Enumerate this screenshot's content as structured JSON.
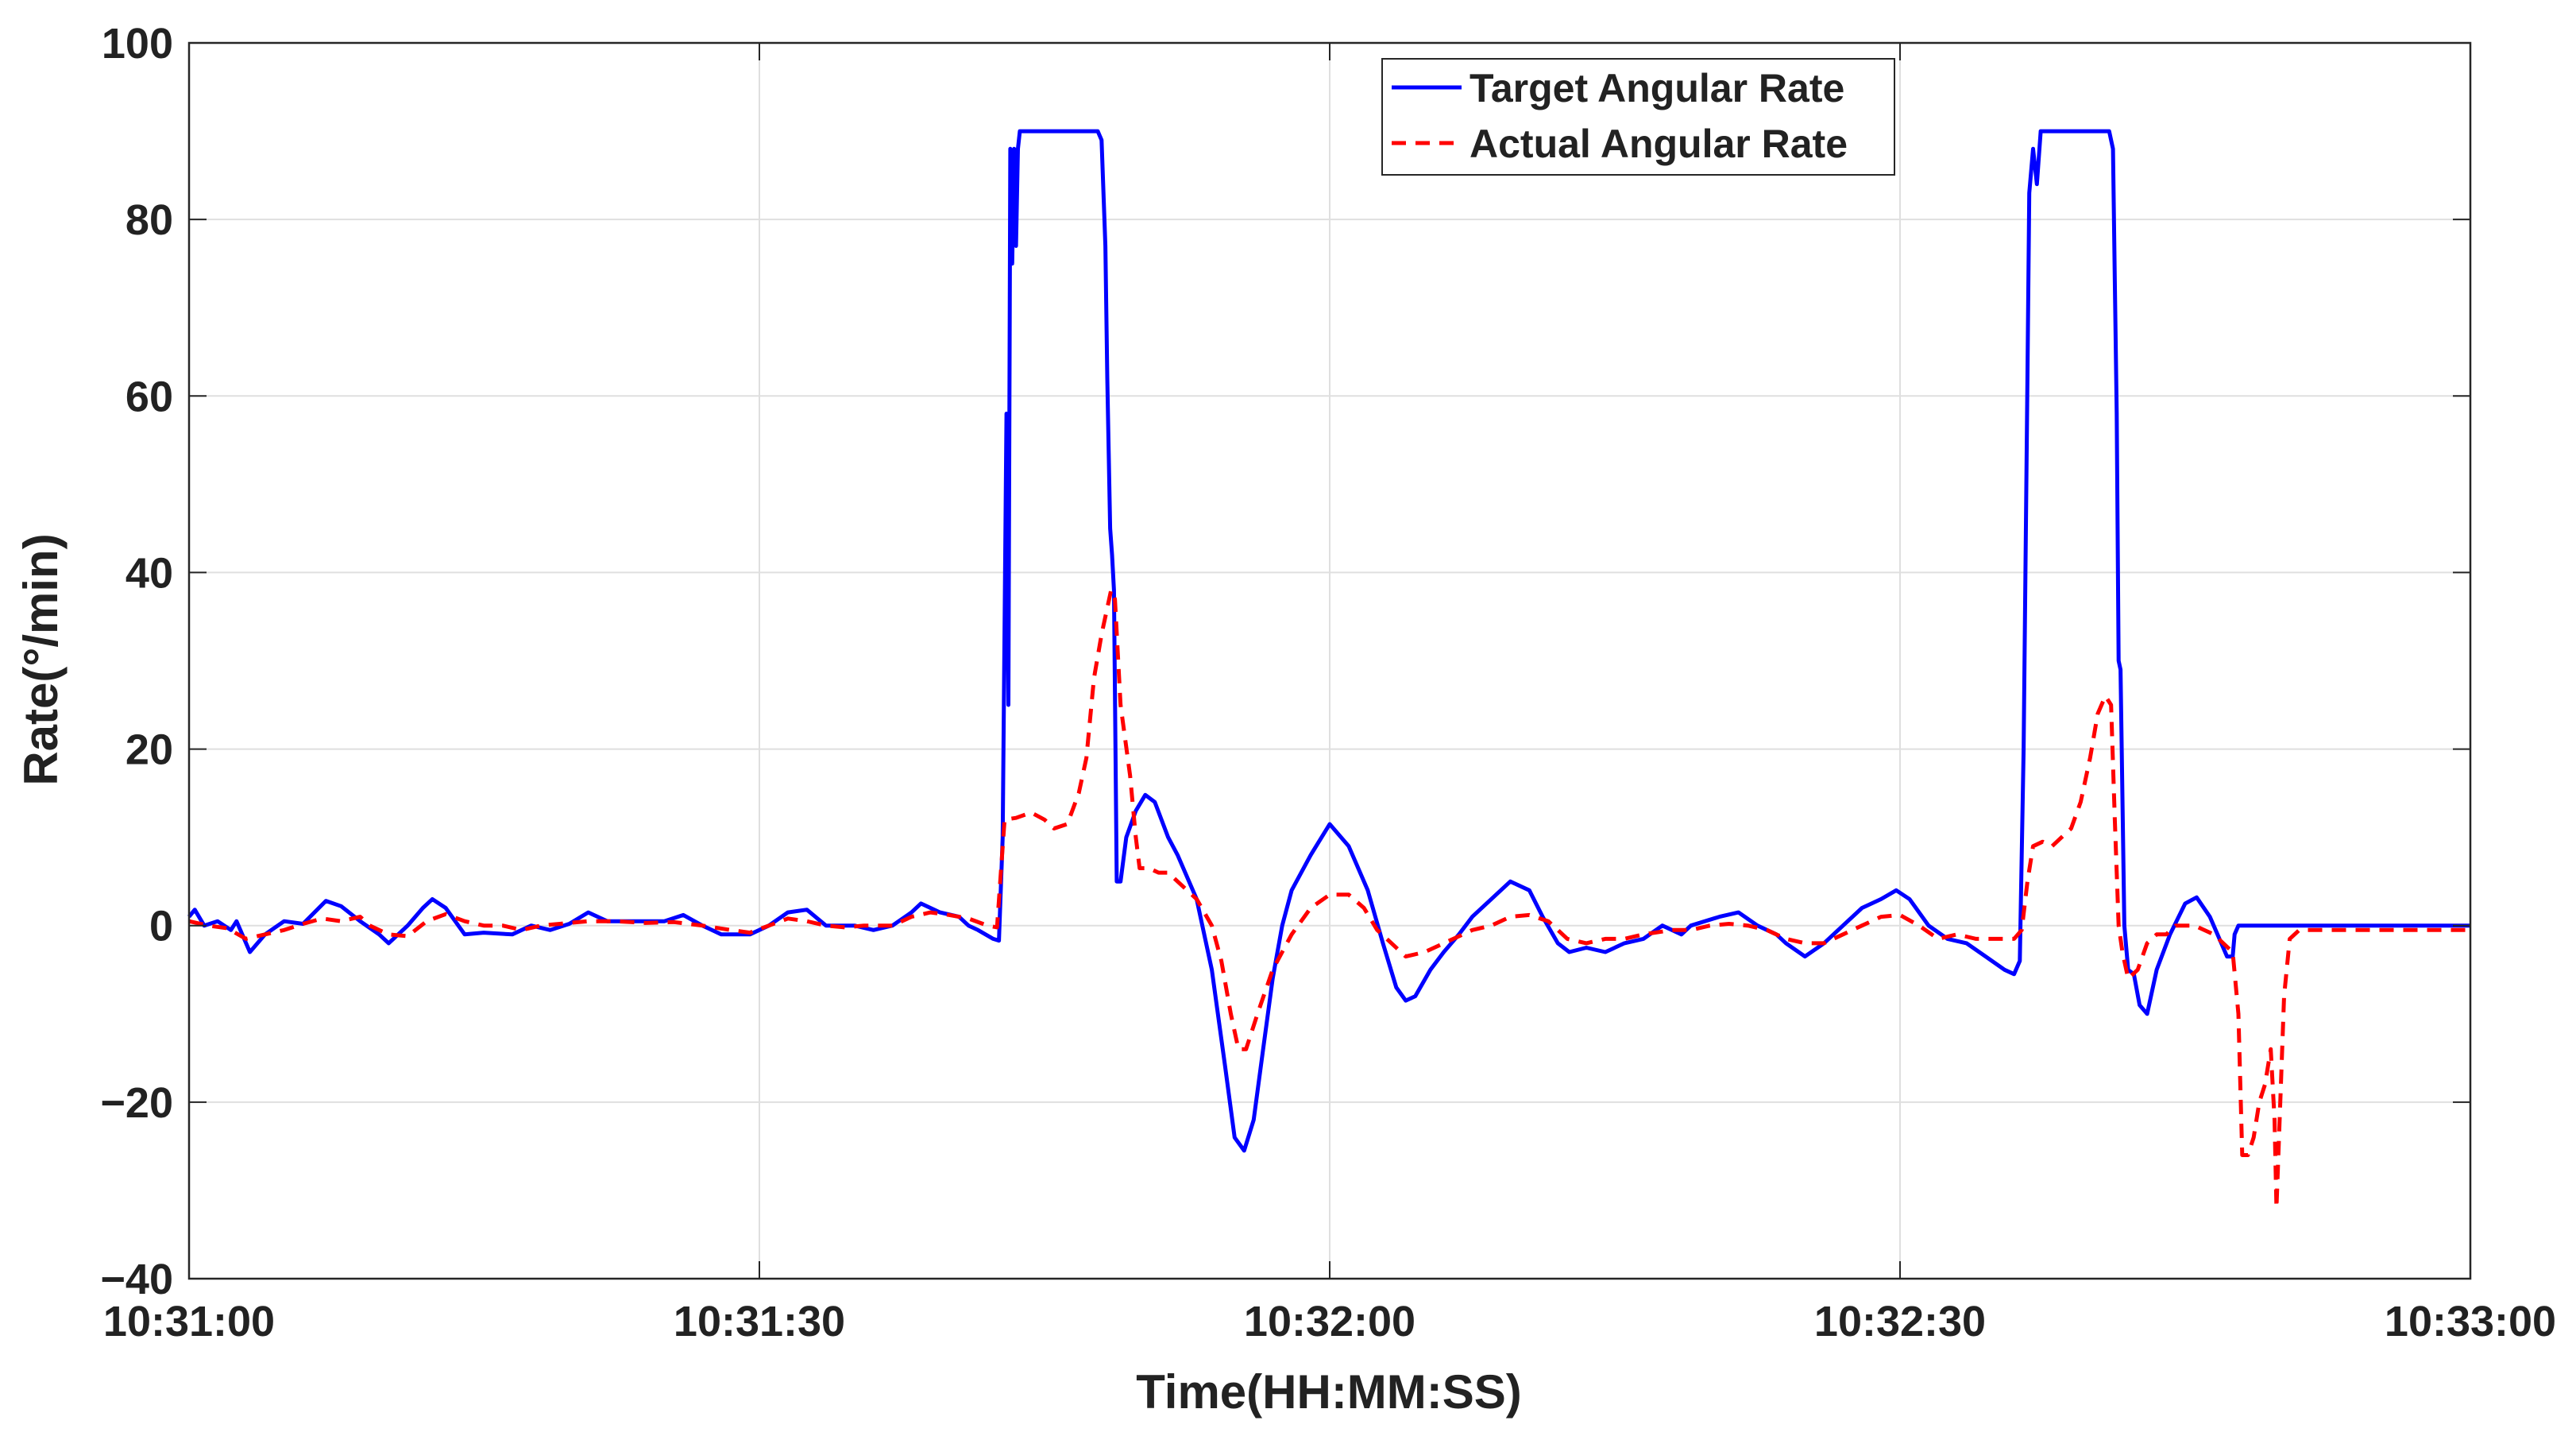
{
  "chart_data": {
    "type": "line",
    "xlabel": "Time(HH:MM:SS)",
    "ylabel": "Rate(°/min)",
    "xlim": [
      0,
      120
    ],
    "ylim": [
      -40,
      100
    ],
    "grid": true,
    "legend_placement": "top-center",
    "x_ticks": [
      {
        "value": 0,
        "label": "10:31:00"
      },
      {
        "value": 30,
        "label": "10:31:30"
      },
      {
        "value": 60,
        "label": "10:32:00"
      },
      {
        "value": 90,
        "label": "10:32:30"
      },
      {
        "value": 120,
        "label": "10:33:00"
      }
    ],
    "y_ticks": [
      {
        "value": 100,
        "label": "100"
      },
      {
        "value": 80,
        "label": "80"
      },
      {
        "value": 60,
        "label": "60"
      },
      {
        "value": 40,
        "label": "40"
      },
      {
        "value": 20,
        "label": "20"
      },
      {
        "value": 0,
        "label": "0"
      },
      {
        "value": -20,
        "label": "−20"
      },
      {
        "value": -40,
        "label": "−40"
      }
    ],
    "series": [
      {
        "name": "Target Angular Rate",
        "color": "#0000ff",
        "style": "solid",
        "points": [
          [
            0,
            1
          ],
          [
            0.3,
            1.8
          ],
          [
            0.8,
            0
          ],
          [
            1.5,
            0.5
          ],
          [
            2.2,
            -0.5
          ],
          [
            2.5,
            0.5
          ],
          [
            3.2,
            -3
          ],
          [
            4,
            -1
          ],
          [
            5,
            0.5
          ],
          [
            6,
            0.2
          ],
          [
            7.2,
            2.8
          ],
          [
            8,
            2.2
          ],
          [
            9,
            0.5
          ],
          [
            10,
            -1
          ],
          [
            10.5,
            -2
          ],
          [
            11.5,
            0
          ],
          [
            12.3,
            2
          ],
          [
            12.8,
            3
          ],
          [
            13.5,
            2
          ],
          [
            14.5,
            -1
          ],
          [
            15.5,
            -0.8
          ],
          [
            17,
            -1
          ],
          [
            18,
            0
          ],
          [
            19,
            -0.5
          ],
          [
            20,
            0.2
          ],
          [
            21,
            1.5
          ],
          [
            22,
            0.5
          ],
          [
            23.5,
            0.5
          ],
          [
            25,
            0.5
          ],
          [
            26,
            1.2
          ],
          [
            27,
            0
          ],
          [
            28,
            -1
          ],
          [
            29.5,
            -1
          ],
          [
            30.5,
            0
          ],
          [
            31.5,
            1.5
          ],
          [
            32.5,
            1.8
          ],
          [
            33.5,
            0
          ],
          [
            35,
            0
          ],
          [
            36,
            -0.5
          ],
          [
            37,
            0
          ],
          [
            38,
            1.5
          ],
          [
            38.5,
            2.5
          ],
          [
            39.5,
            1.5
          ],
          [
            40.5,
            1
          ],
          [
            41,
            0
          ],
          [
            41.5,
            -0.5
          ],
          [
            42.3,
            -1.5
          ],
          [
            42.6,
            -1.7
          ],
          [
            42.8,
            10
          ],
          [
            43,
            58
          ],
          [
            43.1,
            25
          ],
          [
            43.2,
            88
          ],
          [
            43.3,
            75
          ],
          [
            43.4,
            88
          ],
          [
            43.5,
            77
          ],
          [
            43.6,
            88
          ],
          [
            43.7,
            90
          ],
          [
            44,
            90
          ],
          [
            47,
            90
          ],
          [
            47.8,
            90
          ],
          [
            48,
            89
          ],
          [
            48.2,
            77
          ],
          [
            48.3,
            62
          ],
          [
            48.45,
            45
          ],
          [
            48.55,
            42
          ],
          [
            48.65,
            38
          ],
          [
            48.8,
            5
          ],
          [
            49.0,
            5
          ],
          [
            49.3,
            10
          ],
          [
            49.8,
            13
          ],
          [
            50.3,
            14.8
          ],
          [
            50.8,
            14
          ],
          [
            51.5,
            10
          ],
          [
            52,
            8
          ],
          [
            53,
            3
          ],
          [
            53.8,
            -5
          ],
          [
            54.5,
            -16
          ],
          [
            55,
            -24
          ],
          [
            55.5,
            -25.5
          ],
          [
            56,
            -22
          ],
          [
            56.5,
            -14
          ],
          [
            57,
            -6
          ],
          [
            57.5,
            0
          ],
          [
            58,
            4
          ],
          [
            59,
            8
          ],
          [
            60,
            11.5
          ],
          [
            61,
            9
          ],
          [
            62,
            4
          ],
          [
            62.8,
            -2
          ],
          [
            63.5,
            -7
          ],
          [
            64,
            -8.5
          ],
          [
            64.5,
            -8
          ],
          [
            65.3,
            -5
          ],
          [
            66,
            -3
          ],
          [
            66.8,
            -1
          ],
          [
            67.5,
            1
          ],
          [
            68.5,
            3
          ],
          [
            69.5,
            5
          ],
          [
            70.5,
            4
          ],
          [
            71.2,
            1
          ],
          [
            72,
            -2
          ],
          [
            72.6,
            -3
          ],
          [
            73.5,
            -2.5
          ],
          [
            74.5,
            -3
          ],
          [
            75.5,
            -2
          ],
          [
            76.5,
            -1.5
          ],
          [
            77.5,
            0
          ],
          [
            78.5,
            -1
          ],
          [
            79,
            0
          ],
          [
            80.5,
            1
          ],
          [
            81.5,
            1.5
          ],
          [
            82.5,
            0
          ],
          [
            83.5,
            -1
          ],
          [
            84,
            -2
          ],
          [
            85,
            -3.5
          ],
          [
            86,
            -2
          ],
          [
            87,
            0
          ],
          [
            88,
            2
          ],
          [
            89,
            3
          ],
          [
            89.8,
            4
          ],
          [
            90.5,
            3
          ],
          [
            91.5,
            0
          ],
          [
            92.5,
            -1.5
          ],
          [
            93.5,
            -2
          ],
          [
            94.5,
            -3.5
          ],
          [
            95.5,
            -5
          ],
          [
            96,
            -5.5
          ],
          [
            96.3,
            -4
          ],
          [
            96.5,
            20
          ],
          [
            96.7,
            62
          ],
          [
            96.8,
            83
          ],
          [
            97,
            88
          ],
          [
            97.2,
            84
          ],
          [
            97.4,
            90
          ],
          [
            97.6,
            90
          ],
          [
            100,
            90
          ],
          [
            101,
            90
          ],
          [
            101.2,
            88
          ],
          [
            101.3,
            73
          ],
          [
            101.4,
            58
          ],
          [
            101.5,
            30
          ],
          [
            101.6,
            29
          ],
          [
            101.8,
            0
          ],
          [
            102,
            -5
          ],
          [
            102.3,
            -5.5
          ],
          [
            102.6,
            -9
          ],
          [
            103,
            -10
          ],
          [
            103.5,
            -5
          ],
          [
            104.2,
            -1
          ],
          [
            105,
            2.5
          ],
          [
            105.6,
            3.2
          ],
          [
            106.3,
            1
          ],
          [
            106.8,
            -1.5
          ],
          [
            107.2,
            -3.5
          ],
          [
            107.5,
            -3.5
          ],
          [
            107.6,
            -1
          ],
          [
            107.8,
            0
          ],
          [
            110,
            0
          ],
          [
            115,
            0
          ],
          [
            120,
            0
          ]
        ]
      },
      {
        "name": "Actual Angular Rate",
        "color": "#ff0000",
        "style": "dashed",
        "points": [
          [
            0,
            0.5
          ],
          [
            1,
            0
          ],
          [
            2,
            -0.3
          ],
          [
            3,
            -1.5
          ],
          [
            4,
            -1
          ],
          [
            5,
            -0.5
          ],
          [
            6,
            0.2
          ],
          [
            7,
            0.8
          ],
          [
            8,
            0.5
          ],
          [
            9,
            1
          ],
          [
            9.5,
            0
          ],
          [
            10.5,
            -1
          ],
          [
            11.5,
            -1.2
          ],
          [
            12.5,
            0.5
          ],
          [
            13.5,
            1.3
          ],
          [
            14.5,
            0.5
          ],
          [
            15.5,
            0
          ],
          [
            16.5,
            0
          ],
          [
            17.5,
            -0.5
          ],
          [
            18.5,
            0
          ],
          [
            19.5,
            0.2
          ],
          [
            21,
            0.5
          ],
          [
            22.5,
            0.5
          ],
          [
            24,
            0.3
          ],
          [
            25.5,
            0.4
          ],
          [
            27,
            0
          ],
          [
            28.5,
            -0.5
          ],
          [
            29.5,
            -0.8
          ],
          [
            30.5,
            0
          ],
          [
            31.5,
            0.8
          ],
          [
            32.5,
            0.5
          ],
          [
            33.5,
            0
          ],
          [
            34.5,
            -0.2
          ],
          [
            35.5,
            0
          ],
          [
            37,
            0
          ],
          [
            38,
            1
          ],
          [
            39,
            1.5
          ],
          [
            40,
            1.2
          ],
          [
            41,
            0.8
          ],
          [
            42,
            0
          ],
          [
            42.5,
            -0.2
          ],
          [
            42.7,
            6
          ],
          [
            42.9,
            12
          ],
          [
            43.5,
            12.2
          ],
          [
            44.3,
            12.8
          ],
          [
            45,
            12
          ],
          [
            45.5,
            11
          ],
          [
            46.2,
            11.5
          ],
          [
            46.8,
            15
          ],
          [
            47.2,
            19
          ],
          [
            47.6,
            28
          ],
          [
            48.0,
            33
          ],
          [
            48.5,
            38
          ],
          [
            48.7,
            37
          ],
          [
            49,
            25
          ],
          [
            49.5,
            17
          ],
          [
            49.8,
            10
          ],
          [
            50,
            6.5
          ],
          [
            50.5,
            6.5
          ],
          [
            51,
            6
          ],
          [
            51.5,
            6
          ],
          [
            52,
            5
          ],
          [
            53,
            3
          ],
          [
            53.8,
            0
          ],
          [
            54.3,
            -4
          ],
          [
            54.8,
            -10
          ],
          [
            55.2,
            -14
          ],
          [
            55.6,
            -14
          ],
          [
            56.2,
            -10
          ],
          [
            57,
            -5
          ],
          [
            58,
            -1
          ],
          [
            59,
            2
          ],
          [
            60,
            3.5
          ],
          [
            61,
            3.5
          ],
          [
            61.8,
            2
          ],
          [
            62.5,
            -0.5
          ],
          [
            63,
            -1.5
          ],
          [
            64,
            -3.5
          ],
          [
            65,
            -3
          ],
          [
            66.5,
            -1.5
          ],
          [
            67.5,
            -0.5
          ],
          [
            68.5,
            0
          ],
          [
            69.5,
            1
          ],
          [
            70.5,
            1.2
          ],
          [
            71.5,
            0.5
          ],
          [
            72.5,
            -1.5
          ],
          [
            73.5,
            -2
          ],
          [
            74.5,
            -1.5
          ],
          [
            75.5,
            -1.5
          ],
          [
            76.5,
            -1
          ],
          [
            78,
            -0.5
          ],
          [
            79,
            -0.5
          ],
          [
            80,
            0
          ],
          [
            81,
            0.2
          ],
          [
            82,
            0
          ],
          [
            83,
            -0.5
          ],
          [
            84,
            -1.5
          ],
          [
            85,
            -2
          ],
          [
            86,
            -2
          ],
          [
            87,
            -1
          ],
          [
            88,
            0
          ],
          [
            89,
            1
          ],
          [
            90,
            1.2
          ],
          [
            91,
            0
          ],
          [
            92,
            -1.5
          ],
          [
            93,
            -1
          ],
          [
            94,
            -1.5
          ],
          [
            95,
            -1.5
          ],
          [
            96,
            -1.5
          ],
          [
            96.4,
            -0.5
          ],
          [
            96.7,
            5
          ],
          [
            97,
            9
          ],
          [
            97.5,
            9.5
          ],
          [
            98,
            9
          ],
          [
            98.5,
            10
          ],
          [
            99,
            11
          ],
          [
            99.5,
            14
          ],
          [
            100,
            19
          ],
          [
            100.4,
            24
          ],
          [
            100.8,
            26
          ],
          [
            101.1,
            25
          ],
          [
            101.3,
            12
          ],
          [
            101.5,
            0
          ],
          [
            101.7,
            -3
          ],
          [
            102,
            -6
          ],
          [
            102.5,
            -5
          ],
          [
            103,
            -2
          ],
          [
            103.5,
            -1
          ],
          [
            104,
            -1
          ],
          [
            104.5,
            0
          ],
          [
            105,
            0
          ],
          [
            105.5,
            0
          ],
          [
            106,
            -0.5
          ],
          [
            106.5,
            -1
          ],
          [
            107,
            -2
          ],
          [
            107.5,
            -3
          ],
          [
            107.8,
            -10
          ],
          [
            108,
            -26
          ],
          [
            108.3,
            -26
          ],
          [
            108.6,
            -24
          ],
          [
            108.9,
            -20
          ],
          [
            109.2,
            -18
          ],
          [
            109.5,
            -14
          ],
          [
            109.7,
            -22
          ],
          [
            109.8,
            -32
          ],
          [
            110,
            -20
          ],
          [
            110.2,
            -8
          ],
          [
            110.5,
            -1.5
          ],
          [
            111,
            -0.5
          ],
          [
            113,
            -0.5
          ],
          [
            116,
            -0.5
          ],
          [
            120,
            -0.5
          ]
        ]
      }
    ]
  }
}
